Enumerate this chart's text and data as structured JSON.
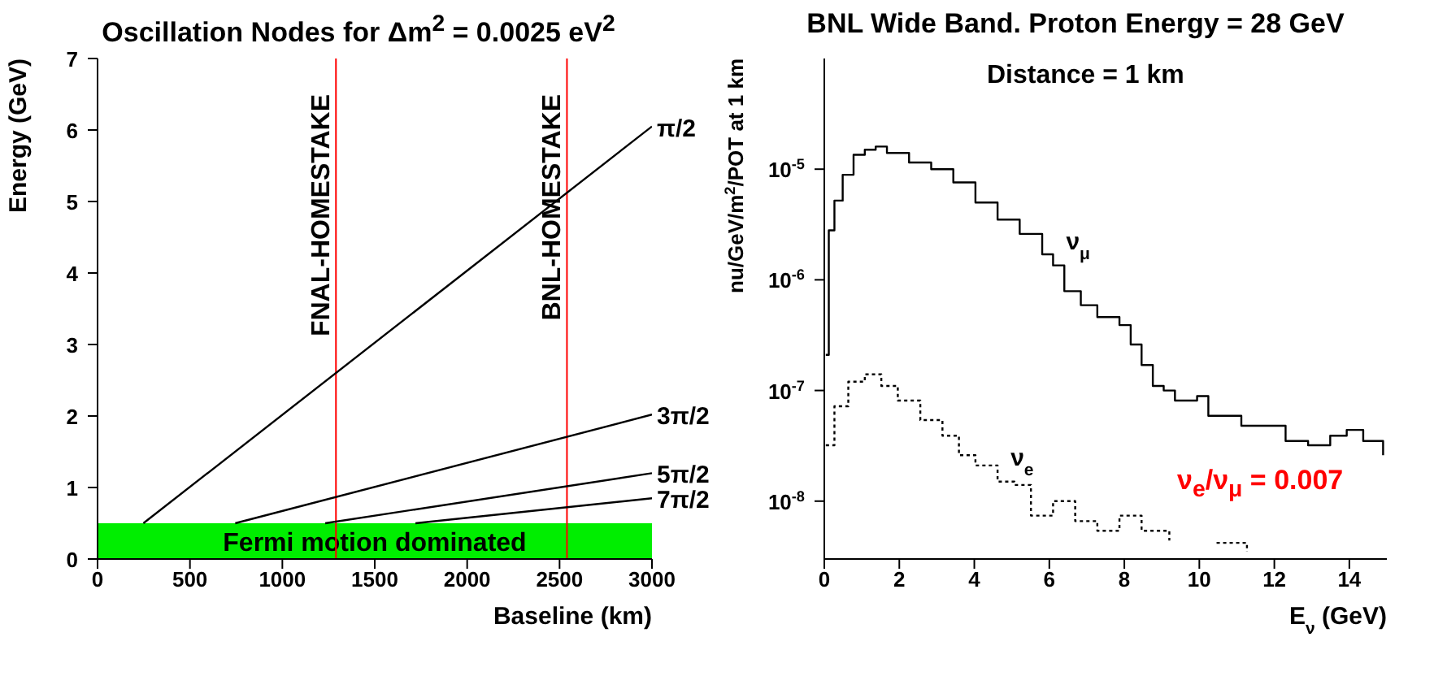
{
  "chart_data": [
    {
      "type": "line",
      "title": "Oscillation Nodes for Δm$^{2}$ = 0.0025 eV$^{2}$",
      "xlabel": "Baseline (km)",
      "ylabel": "Energy (GeV)",
      "xlim": [
        0,
        3000
      ],
      "xticks": [
        0,
        500,
        1000,
        1500,
        2000,
        2500,
        3000
      ],
      "ylim": [
        0,
        7
      ],
      "yticks": [
        0,
        1,
        2,
        3,
        4,
        5,
        6,
        7
      ],
      "marker": "none",
      "series": [
        {
          "name": "π/2",
          "color": "#000000",
          "x": [
            248,
            3000
          ],
          "values": [
            0.5,
            6.05
          ]
        },
        {
          "name": "3π/2",
          "color": "#000000",
          "x": [
            745,
            3000
          ],
          "values": [
            0.5,
            2.02
          ]
        },
        {
          "name": "5π/2",
          "color": "#000000",
          "x": [
            1232,
            3000
          ],
          "values": [
            0.5,
            1.2
          ]
        },
        {
          "name": "7π/2",
          "color": "#000000",
          "x": [
            1720,
            3000
          ],
          "values": [
            0.5,
            0.85
          ]
        }
      ],
      "ref_lines": [
        {
          "axis": "x",
          "value": 1290,
          "label": "FNAL-HOMESTAKE",
          "color": "#ff0000"
        },
        {
          "axis": "x",
          "value": 2540,
          "label": "BNL-HOMESTAKE",
          "color": "#ff0000"
        }
      ],
      "bands": [
        {
          "axis": "y",
          "from": 0,
          "to": 0.5,
          "label": "Fermi motion dominated",
          "color": "#00ee00"
        }
      ]
    },
    {
      "type": "step",
      "title": "BNL Wide Band. Proton Energy = 28 GeV",
      "xlabel": "E$_{ν}$ (GeV)",
      "ylabel": "nu/GeV/m$^{2}$/POT at 1 km",
      "xlim": [
        0,
        15
      ],
      "xticks": [
        0,
        2,
        4,
        6,
        8,
        10,
        12,
        14
      ],
      "ylim": [
        3e-09,
        0.0001
      ],
      "log": "y",
      "yticks": [
        {
          "value": 1e-08,
          "label": "10$^{-8}$"
        },
        {
          "value": 1e-07,
          "label": "10$^{-7}$"
        },
        {
          "value": 1e-06,
          "label": "10$^{-6}$"
        },
        {
          "value": 1e-05,
          "label": "10$^{-5}$"
        }
      ],
      "marker": "none",
      "annotations": [
        "Distance = 1 km",
        "ν$_{e}$/ν$_{μ}$ = 0.007"
      ],
      "series": [
        {
          "name": "ν$_{μ}$",
          "color": "#000000",
          "line_style": "solid",
          "x": [
            0.04,
            0.12,
            0.27,
            0.49,
            0.78,
            1.08,
            1.37,
            1.67,
            2.26,
            2.85,
            3.44,
            4.03,
            4.62,
            5.21,
            5.81,
            6.1,
            6.4,
            6.84,
            7.28,
            7.87,
            8.17,
            8.46,
            8.76,
            9.05,
            9.35,
            9.94,
            10.24,
            10.83,
            11.12,
            11.71,
            12.3,
            12.9,
            13.49,
            13.93,
            14.37,
            14.9
          ],
          "values": [
            2.1e-07,
            2.8e-06,
            5.2e-06,
            8.9e-06,
            1.35e-05,
            1.5e-05,
            1.6e-05,
            1.4e-05,
            1.15e-05,
            1e-05,
            7.6e-06,
            5e-06,
            3.5e-06,
            2.6e-06,
            1.7e-06,
            1.35e-06,
            7.9e-07,
            5.9e-07,
            4.6e-07,
            3.9e-07,
            2.6e-07,
            1.7e-07,
            1.1e-07,
            1e-07,
            8.1e-08,
            8.9e-08,
            5.9e-08,
            5.9e-08,
            4.8e-08,
            4.8e-08,
            3.5e-08,
            3.2e-08,
            3.9e-08,
            4.4e-08,
            3.5e-08,
            2.6e-08
          ]
        },
        {
          "name": "ν$_{e}$",
          "color": "#000000",
          "line_style": "dotted",
          "x": [
            0.04,
            0.27,
            0.64,
            1.08,
            1.52,
            1.96,
            2.56,
            3.15,
            3.59,
            4.03,
            4.62,
            5.07,
            5.51,
            6.1,
            6.69,
            7.28,
            7.87,
            8.46,
            9.2,
            9.65,
            10.46,
            11.27
          ],
          "values": [
            3.2e-08,
            7.2e-08,
            1.2e-07,
            1.4e-07,
            1.1e-07,
            8.1e-08,
            5.4e-08,
            3.9e-08,
            2.6e-08,
            2.1e-08,
            1.5e-08,
            1.4e-08,
            7.4e-09,
            1e-08,
            6.6e-09,
            5.4e-09,
            7.4e-09,
            5.4e-09,
            4.4e-09,
            null,
            4.2e-09,
            3.5e-09
          ]
        }
      ]
    }
  ]
}
